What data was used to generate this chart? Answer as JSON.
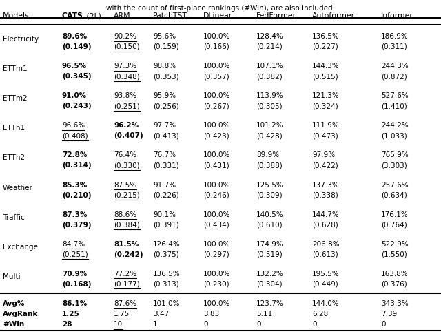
{
  "title": "with the count of first-place rankings (#Win), are also included.",
  "columns": [
    "Models",
    "CATS (2L)",
    "ARM",
    "PatchTST",
    "DLinear",
    "FedFormer",
    "Autoformer",
    "Informer"
  ],
  "rows": [
    {
      "name": "Electricity",
      "vals": [
        [
          "89.6%",
          "(0.149)",
          true,
          false,
          true,
          false
        ],
        [
          "90.2%",
          "(0.150)",
          false,
          true,
          false,
          true
        ],
        [
          "95.6%",
          "(0.159)",
          false,
          false,
          false,
          false
        ],
        [
          "100.0%",
          "(0.166)",
          false,
          false,
          false,
          false
        ],
        [
          "128.4%",
          "(0.214)",
          false,
          false,
          false,
          false
        ],
        [
          "136.5%",
          "(0.227)",
          false,
          false,
          false,
          false
        ],
        [
          "186.9%",
          "(0.311)",
          false,
          false,
          false,
          false
        ]
      ]
    },
    {
      "name": "ETTm1",
      "vals": [
        [
          "96.5%",
          "(0.345)",
          true,
          false,
          true,
          false
        ],
        [
          "97.3%",
          "(0.348)",
          false,
          true,
          false,
          true
        ],
        [
          "98.8%",
          "(0.353)",
          false,
          false,
          false,
          false
        ],
        [
          "100.0%",
          "(0.357)",
          false,
          false,
          false,
          false
        ],
        [
          "107.1%",
          "(0.382)",
          false,
          false,
          false,
          false
        ],
        [
          "144.3%",
          "(0.515)",
          false,
          false,
          false,
          false
        ],
        [
          "244.3%",
          "(0.872)",
          false,
          false,
          false,
          false
        ]
      ]
    },
    {
      "name": "ETTm2",
      "vals": [
        [
          "91.0%",
          "(0.243)",
          true,
          false,
          true,
          false
        ],
        [
          "93.8%",
          "(0.251)",
          false,
          true,
          false,
          true
        ],
        [
          "95.9%",
          "(0.256)",
          false,
          false,
          false,
          false
        ],
        [
          "100.0%",
          "(0.267)",
          false,
          false,
          false,
          false
        ],
        [
          "113.9%",
          "(0.305)",
          false,
          false,
          false,
          false
        ],
        [
          "121.3%",
          "(0.324)",
          false,
          false,
          false,
          false
        ],
        [
          "527.6%",
          "(1.410)",
          false,
          false,
          false,
          false
        ]
      ]
    },
    {
      "name": "ETTh1",
      "vals": [
        [
          "96.6%",
          "(0.408)",
          false,
          true,
          false,
          true
        ],
        [
          "96.2%",
          "(0.407)",
          true,
          false,
          true,
          false
        ],
        [
          "97.7%",
          "(0.413)",
          false,
          false,
          false,
          false
        ],
        [
          "100.0%",
          "(0.423)",
          false,
          false,
          false,
          false
        ],
        [
          "101.2%",
          "(0.428)",
          false,
          false,
          false,
          false
        ],
        [
          "111.9%",
          "(0.473)",
          false,
          false,
          false,
          false
        ],
        [
          "244.2%",
          "(1.033)",
          false,
          false,
          false,
          false
        ]
      ]
    },
    {
      "name": "ETTh2",
      "vals": [
        [
          "72.8%",
          "(0.314)",
          true,
          false,
          true,
          false
        ],
        [
          "76.4%",
          "(0.330)",
          false,
          true,
          false,
          true
        ],
        [
          "76.7%",
          "(0.331)",
          false,
          false,
          false,
          false
        ],
        [
          "100.0%",
          "(0.431)",
          false,
          false,
          false,
          false
        ],
        [
          "89.9%",
          "(0.388)",
          false,
          false,
          false,
          false
        ],
        [
          "97.9%",
          "(0.422)",
          false,
          false,
          false,
          false
        ],
        [
          "765.9%",
          "(3.303)",
          false,
          false,
          false,
          false
        ]
      ]
    },
    {
      "name": "Weather",
      "vals": [
        [
          "85.3%",
          "(0.210)",
          true,
          false,
          true,
          false
        ],
        [
          "87.5%",
          "(0.215)",
          false,
          true,
          false,
          true
        ],
        [
          "91.7%",
          "(0.226)",
          false,
          false,
          false,
          false
        ],
        [
          "100.0%",
          "(0.246)",
          false,
          false,
          false,
          false
        ],
        [
          "125.5%",
          "(0.309)",
          false,
          false,
          false,
          false
        ],
        [
          "137.3%",
          "(0.338)",
          false,
          false,
          false,
          false
        ],
        [
          "257.6%",
          "(0.634)",
          false,
          false,
          false,
          false
        ]
      ]
    },
    {
      "name": "Traffic",
      "vals": [
        [
          "87.3%",
          "(0.379)",
          true,
          false,
          true,
          false
        ],
        [
          "88.6%",
          "(0.384)",
          false,
          true,
          false,
          true
        ],
        [
          "90.1%",
          "(0.391)",
          false,
          false,
          false,
          false
        ],
        [
          "100.0%",
          "(0.434)",
          false,
          false,
          false,
          false
        ],
        [
          "140.5%",
          "(0.610)",
          false,
          false,
          false,
          false
        ],
        [
          "144.7%",
          "(0.628)",
          false,
          false,
          false,
          false
        ],
        [
          "176.1%",
          "(0.764)",
          false,
          false,
          false,
          false
        ]
      ]
    },
    {
      "name": "Exchange",
      "vals": [
        [
          "84.7%",
          "(0.251)",
          false,
          true,
          false,
          true
        ],
        [
          "81.5%",
          "(0.242)",
          true,
          false,
          true,
          false
        ],
        [
          "126.4%",
          "(0.375)",
          false,
          false,
          false,
          false
        ],
        [
          "100.0%",
          "(0.297)",
          false,
          false,
          false,
          false
        ],
        [
          "174.9%",
          "(0.519)",
          false,
          false,
          false,
          false
        ],
        [
          "206.8%",
          "(0.613)",
          false,
          false,
          false,
          false
        ],
        [
          "522.9%",
          "(1.550)",
          false,
          false,
          false,
          false
        ]
      ]
    },
    {
      "name": "Multi",
      "vals": [
        [
          "70.9%",
          "(0.168)",
          true,
          false,
          true,
          false
        ],
        [
          "77.2%",
          "(0.177)",
          false,
          true,
          false,
          true
        ],
        [
          "136.5%",
          "(0.313)",
          false,
          false,
          false,
          false
        ],
        [
          "100.0%",
          "(0.230)",
          false,
          false,
          false,
          false
        ],
        [
          "132.2%",
          "(0.304)",
          false,
          false,
          false,
          false
        ],
        [
          "195.5%",
          "(0.449)",
          false,
          false,
          false,
          false
        ],
        [
          "163.8%",
          "(0.376)",
          false,
          false,
          false,
          false
        ]
      ]
    }
  ],
  "footer_avg": [
    "86.1%",
    "87.6%",
    "101.0%",
    "100.0%",
    "123.7%",
    "144.0%",
    "343.3%"
  ],
  "footer_avg_bold": [
    true,
    false,
    false,
    false,
    false,
    false,
    false
  ],
  "footer_avg_ul": [
    false,
    true,
    false,
    false,
    false,
    false,
    false
  ],
  "footer_rank": [
    "1.25",
    "1.75",
    "3.47",
    "3.83",
    "5.11",
    "6.28",
    "7.39"
  ],
  "footer_rank_bold": [
    true,
    false,
    false,
    false,
    false,
    false,
    false
  ],
  "footer_rank_ul": [
    false,
    true,
    false,
    false,
    false,
    false,
    false
  ],
  "footer_win": [
    "28",
    "10",
    "1",
    "0",
    "0",
    "0",
    "0"
  ],
  "footer_win_bold": [
    true,
    false,
    false,
    false,
    false,
    false,
    false
  ],
  "footer_win_ul": [
    false,
    true,
    false,
    false,
    false,
    false,
    false
  ]
}
